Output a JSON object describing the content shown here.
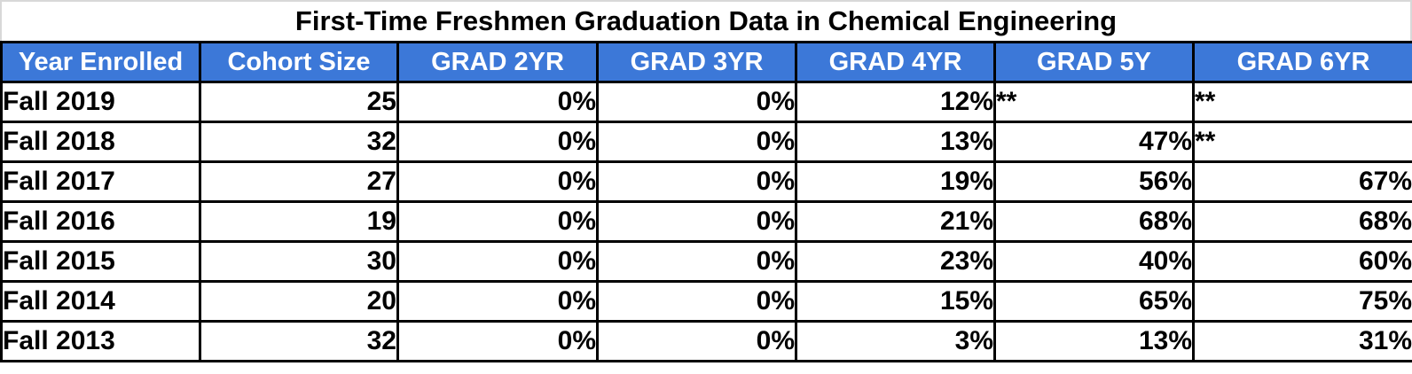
{
  "title": "First-Time Freshmen Graduation Data in Chemical Engineering",
  "table": {
    "headers": [
      "Year Enrolled",
      "Cohort Size",
      "GRAD 2YR",
      "GRAD 3YR",
      "GRAD 4YR",
      "GRAD 5Y",
      "GRAD 6YR"
    ],
    "rows": [
      [
        "Fall 2019",
        "25",
        "0%",
        "0%",
        "12%",
        "**",
        "**"
      ],
      [
        "Fall 2018",
        "32",
        "0%",
        "0%",
        "13%",
        "47%",
        "**"
      ],
      [
        "Fall 2017",
        "27",
        "0%",
        "0%",
        "19%",
        "56%",
        "67%"
      ],
      [
        "Fall 2016",
        "19",
        "0%",
        "0%",
        "21%",
        "68%",
        "68%"
      ],
      [
        "Fall 2015",
        "30",
        "0%",
        "0%",
        "23%",
        "40%",
        "60%"
      ],
      [
        "Fall 2014",
        "20",
        "0%",
        "0%",
        "15%",
        "65%",
        "75%"
      ],
      [
        "Fall 2013",
        "32",
        "0%",
        "0%",
        "3%",
        "13%",
        "31%"
      ]
    ]
  },
  "colors": {
    "header_bg": "#3C78D8",
    "year_col_bg": "#9FC5E8",
    "header_text": "#FFFFFF",
    "cell_text": "#000000",
    "border": "#000000",
    "page_edge": "#D8D8D8"
  },
  "chart_data": {
    "type": "table",
    "title": "First-Time Freshmen Graduation Data in Chemical Engineering",
    "columns": [
      "Year Enrolled",
      "Cohort Size",
      "GRAD 2YR",
      "GRAD 3YR",
      "GRAD 4YR",
      "GRAD 5Y",
      "GRAD 6YR"
    ],
    "rows": [
      [
        "Fall 2019",
        25,
        "0%",
        "0%",
        "12%",
        "**",
        "**"
      ],
      [
        "Fall 2018",
        32,
        "0%",
        "0%",
        "13%",
        "47%",
        "**"
      ],
      [
        "Fall 2017",
        27,
        "0%",
        "0%",
        "19%",
        "56%",
        "67%"
      ],
      [
        "Fall 2016",
        19,
        "0%",
        "0%",
        "21%",
        "68%",
        "68%"
      ],
      [
        "Fall 2015",
        30,
        "0%",
        "0%",
        "23%",
        "40%",
        "60%"
      ],
      [
        "Fall 2014",
        20,
        "0%",
        "0%",
        "15%",
        "65%",
        "75%"
      ],
      [
        "Fall 2013",
        32,
        "0%",
        "0%",
        "3%",
        "13%",
        "31%"
      ]
    ]
  }
}
